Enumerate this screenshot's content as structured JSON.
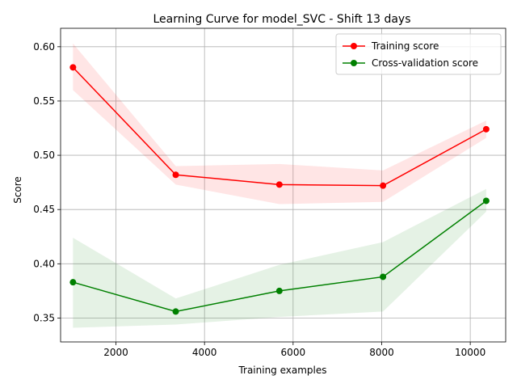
{
  "chart_data": {
    "type": "line",
    "title": "Learning Curve for model_SVC - Shift 13 days",
    "xlabel": "Training examples",
    "ylabel": "Score",
    "xlim": [
      750,
      10800
    ],
    "ylim": [
      0.328,
      0.617
    ],
    "x_ticks": [
      2000,
      4000,
      6000,
      8000,
      10000
    ],
    "y_ticks": [
      0.35,
      0.4,
      0.45,
      0.5,
      0.55,
      0.6
    ],
    "grid": true,
    "legend_position": "top-right",
    "x": [
      1030,
      3350,
      5690,
      8030,
      10360
    ],
    "series": [
      {
        "name": "Training score",
        "color": "#ff0000",
        "band_color": "#ff0000",
        "values": [
          0.581,
          0.482,
          0.473,
          0.472,
          0.524
        ],
        "upper": [
          0.603,
          0.49,
          0.492,
          0.486,
          0.532
        ],
        "lower": [
          0.56,
          0.473,
          0.455,
          0.457,
          0.516
        ]
      },
      {
        "name": "Cross-validation score",
        "color": "#008000",
        "band_color": "#008000",
        "values": [
          0.383,
          0.356,
          0.375,
          0.388,
          0.458
        ],
        "upper": [
          0.424,
          0.368,
          0.399,
          0.42,
          0.469
        ],
        "lower": [
          0.341,
          0.344,
          0.351,
          0.356,
          0.448
        ]
      }
    ]
  }
}
